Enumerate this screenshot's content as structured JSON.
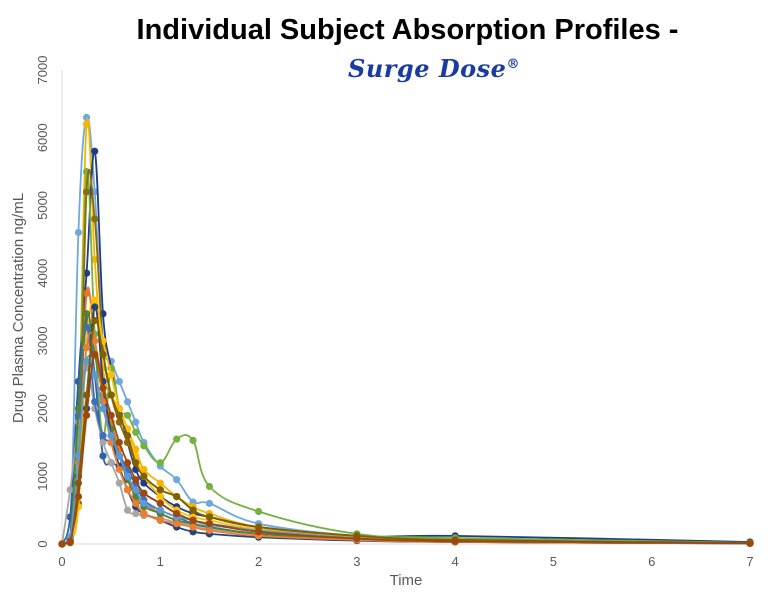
{
  "chart_data": {
    "type": "line",
    "title": "Individual Subject Absorption Profiles -",
    "brand": "Surge Dose",
    "brand_mark": "®",
    "xlabel": "Time",
    "ylabel": "Drug Plasma Concentration ng/mL",
    "xlim": [
      0,
      7
    ],
    "ylim": [
      0,
      7000
    ],
    "x_ticks": [
      "0",
      "1",
      "2",
      "3",
      "4",
      "5",
      "6",
      "7"
    ],
    "y_ticks": [
      "0",
      "1000",
      "2000",
      "3000",
      "4000",
      "5000",
      "6000",
      "7000"
    ],
    "grid": false,
    "legend": "none",
    "colors": [
      "#6fa8dc",
      "#f4b400",
      "#1f3c88",
      "#76b041",
      "#2e5fa8",
      "#e8762b",
      "#a6a6a6",
      "#8b6d0b",
      "#ffc000",
      "#3f6ec1",
      "#548235",
      "#264478",
      "#ed7d31",
      "#5b9bd5",
      "#806000",
      "#9e480e"
    ],
    "series": [
      {
        "x": [
          0,
          0.083,
          0.167,
          0.25,
          0.333,
          0.417,
          0.5,
          0.583,
          0.667,
          0.75,
          0.833,
          1,
          1.167,
          1.333,
          1.5,
          2,
          3,
          4,
          7
        ],
        "values": [
          0,
          30,
          4600,
          6300,
          5200,
          3000,
          2700,
          2400,
          2100,
          1800,
          1500,
          1150,
          950,
          620,
          600,
          300,
          120,
          60,
          20
        ]
      },
      {
        "x": [
          0,
          0.083,
          0.167,
          0.25,
          0.333,
          0.417,
          0.5,
          0.583,
          0.667,
          0.75,
          0.833,
          1,
          1.167,
          1.333,
          1.5,
          2,
          3,
          4,
          7
        ],
        "values": [
          0,
          20,
          1600,
          6200,
          4200,
          2600,
          2200,
          2000,
          1700,
          1400,
          1100,
          900,
          700,
          550,
          450,
          250,
          100,
          50,
          15
        ]
      },
      {
        "x": [
          0,
          0.083,
          0.167,
          0.25,
          0.333,
          0.417,
          0.5,
          0.583,
          0.667,
          0.75,
          0.833,
          1,
          1.167,
          1.333,
          1.5,
          2,
          3,
          4,
          7
        ],
        "values": [
          0,
          40,
          2400,
          4000,
          5800,
          3400,
          2600,
          2000,
          1500,
          1100,
          900,
          700,
          550,
          450,
          400,
          250,
          110,
          120,
          30
        ]
      },
      {
        "x": [
          0,
          0.083,
          0.167,
          0.25,
          0.333,
          0.417,
          0.5,
          0.583,
          0.667,
          0.75,
          0.833,
          1,
          1.167,
          1.333,
          1.5,
          2,
          3,
          4,
          7
        ],
        "values": [
          0,
          60,
          1400,
          5500,
          3100,
          1600,
          2600,
          2000,
          1900,
          1650,
          1450,
          1200,
          1550,
          1530,
          850,
          480,
          150,
          90,
          20
        ]
      },
      {
        "x": [
          0,
          0.083,
          0.167,
          0.25,
          0.333,
          0.417,
          0.5,
          0.583,
          0.667,
          0.75,
          0.833,
          1,
          1.167,
          1.333,
          1.5,
          2,
          3,
          4,
          7
        ],
        "values": [
          0,
          400,
          2400,
          3300,
          2500,
          1300,
          1200,
          1150,
          1050,
          900,
          750,
          600,
          450,
          350,
          300,
          200,
          100,
          50,
          20
        ]
      },
      {
        "x": [
          0,
          0.083,
          0.167,
          0.25,
          0.333,
          0.417,
          0.5,
          0.583,
          0.667,
          0.75,
          0.833,
          1,
          1.167,
          1.333,
          1.5,
          2,
          3,
          4,
          7
        ],
        "values": [
          0,
          100,
          1000,
          3700,
          3000,
          2400,
          1800,
          1400,
          1000,
          750,
          600,
          450,
          350,
          300,
          250,
          150,
          80,
          40,
          10
        ]
      },
      {
        "x": [
          0,
          0.083,
          0.167,
          0.25,
          0.333,
          0.417,
          0.5,
          0.583,
          0.667,
          0.75,
          0.833,
          1,
          1.167,
          1.333,
          1.5,
          2,
          3,
          4,
          7
        ],
        "values": [
          0,
          800,
          1800,
          2600,
          2000,
          1500,
          1200,
          900,
          500,
          450,
          420,
          380,
          320,
          280,
          220,
          150,
          80,
          40,
          10
        ]
      },
      {
        "x": [
          0,
          0.083,
          0.167,
          0.25,
          0.333,
          0.417,
          0.5,
          0.583,
          0.667,
          0.75,
          0.833,
          1,
          1.167,
          1.333,
          1.5,
          2,
          3,
          4,
          7
        ],
        "values": [
          0,
          50,
          600,
          5200,
          4800,
          2900,
          2200,
          1800,
          1500,
          1200,
          1000,
          800,
          700,
          500,
          400,
          250,
          120,
          60,
          15
        ]
      },
      {
        "x": [
          0,
          0.083,
          0.167,
          0.25,
          0.333,
          0.417,
          0.5,
          0.583,
          0.667,
          0.75,
          0.833,
          1,
          1.167,
          1.333,
          1.5,
          2,
          3,
          4,
          7
        ],
        "values": [
          0,
          50,
          550,
          3000,
          3600,
          3000,
          2500,
          2000,
          1700,
          1300,
          1000,
          700,
          500,
          400,
          350,
          220,
          100,
          50,
          15
        ]
      },
      {
        "x": [
          0,
          0.083,
          0.167,
          0.25,
          0.333,
          0.417,
          0.5,
          0.583,
          0.667,
          0.75,
          0.833,
          1,
          1.167,
          1.333,
          1.5,
          2,
          3,
          4,
          7
        ],
        "values": [
          0,
          100,
          1900,
          3200,
          2100,
          1600,
          1500,
          1300,
          1100,
          900,
          650,
          500,
          400,
          300,
          250,
          150,
          70,
          30,
          10
        ]
      },
      {
        "x": [
          0,
          0.083,
          0.167,
          0.25,
          0.333,
          0.417,
          0.5,
          0.583,
          0.667,
          0.75,
          0.833,
          1,
          1.167,
          1.333,
          1.5,
          2,
          3,
          4,
          7
        ],
        "values": [
          0,
          80,
          2000,
          3400,
          2800,
          2200,
          1700,
          1300,
          950,
          700,
          550,
          450,
          350,
          300,
          250,
          150,
          70,
          30,
          10
        ]
      },
      {
        "x": [
          0,
          0.083,
          0.167,
          0.25,
          0.333,
          0.417,
          0.5,
          0.583,
          0.667,
          0.75,
          0.833,
          1,
          1.167,
          1.333,
          1.5,
          2,
          3,
          4,
          7
        ],
        "values": [
          0,
          30,
          1000,
          2000,
          3500,
          2400,
          1600,
          1150,
          800,
          550,
          450,
          350,
          250,
          180,
          150,
          100,
          50,
          30,
          10
        ]
      },
      {
        "x": [
          0,
          0.083,
          0.167,
          0.25,
          0.333,
          0.417,
          0.5,
          0.583,
          0.667,
          0.75,
          0.833,
          1,
          1.167,
          1.333,
          1.5,
          2,
          3,
          4,
          7
        ],
        "values": [
          0,
          60,
          1200,
          2900,
          3000,
          2100,
          1500,
          1100,
          800,
          600,
          450,
          350,
          300,
          250,
          200,
          120,
          60,
          30,
          10
        ]
      },
      {
        "x": [
          0,
          0.083,
          0.167,
          0.25,
          0.333,
          0.417,
          0.5,
          0.583,
          0.667,
          0.75,
          0.833,
          1,
          1.167,
          1.333,
          1.5,
          2,
          3,
          4,
          7
        ],
        "values": [
          0,
          100,
          1300,
          2700,
          2500,
          2000,
          1600,
          1300,
          1000,
          800,
          600,
          500,
          400,
          350,
          280,
          200,
          90,
          40,
          10
        ]
      },
      {
        "x": [
          0,
          0.083,
          0.167,
          0.25,
          0.333,
          0.417,
          0.5,
          0.583,
          0.667,
          0.75,
          0.833,
          1,
          1.167,
          1.333,
          1.5,
          2,
          3,
          4,
          7
        ],
        "values": [
          0,
          20,
          900,
          2200,
          3300,
          2800,
          2200,
          1900,
          1600,
          1200,
          1000,
          800,
          700,
          500,
          400,
          250,
          120,
          60,
          15
        ]
      },
      {
        "x": [
          0,
          0.083,
          0.167,
          0.25,
          0.333,
          0.417,
          0.5,
          0.583,
          0.667,
          0.75,
          0.833,
          1,
          1.167,
          1.333,
          1.5,
          2,
          3,
          4,
          7
        ],
        "values": [
          0,
          40,
          700,
          1900,
          2800,
          2300,
          1900,
          1500,
          1200,
          950,
          750,
          600,
          450,
          350,
          300,
          180,
          80,
          40,
          10
        ]
      }
    ]
  }
}
